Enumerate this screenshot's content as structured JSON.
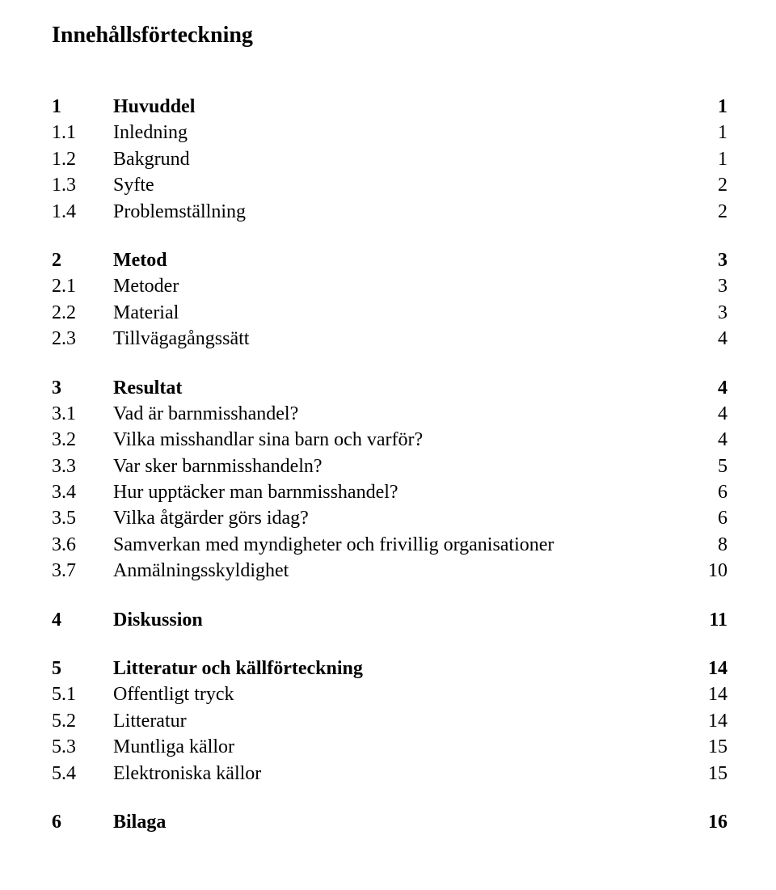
{
  "title": "Innehållsförteckning",
  "rows": [
    {
      "num": "1",
      "label": "Huvuddel",
      "page": "1",
      "bold": true
    },
    {
      "num": "1.1",
      "label": "Inledning",
      "page": "1",
      "bold": false
    },
    {
      "num": "1.2",
      "label": "Bakgrund",
      "page": "1",
      "bold": false
    },
    {
      "num": "1.3",
      "label": "Syfte",
      "page": "2",
      "bold": false
    },
    {
      "num": "1.4",
      "label": "Problemställning",
      "page": "2",
      "bold": false
    },
    {
      "num": "2",
      "label": "Metod",
      "page": "3",
      "bold": true
    },
    {
      "num": "2.1",
      "label": "Metoder",
      "page": "3",
      "bold": false
    },
    {
      "num": "2.2",
      "label": "Material",
      "page": "3",
      "bold": false
    },
    {
      "num": "2.3",
      "label": "Tillvägagångssätt",
      "page": "4",
      "bold": false
    },
    {
      "num": "3",
      "label": "Resultat",
      "page": "4",
      "bold": true
    },
    {
      "num": "3.1",
      "label": "Vad är barnmisshandel?",
      "page": "4",
      "bold": false
    },
    {
      "num": "3.2",
      "label": "Vilka misshandlar sina barn och varför?",
      "page": "4",
      "bold": false
    },
    {
      "num": "3.3",
      "label": "Var sker barnmisshandeln?",
      "page": "5",
      "bold": false
    },
    {
      "num": "3.4",
      "label": "Hur upptäcker man barnmisshandel?",
      "page": "6",
      "bold": false
    },
    {
      "num": "3.5",
      "label": "Vilka åtgärder görs idag?",
      "page": "6",
      "bold": false
    },
    {
      "num": "3.6",
      "label": "Samverkan med myndigheter och frivillig organisationer",
      "page": "8",
      "bold": false
    },
    {
      "num": "3.7",
      "label": "Anmälningsskyldighet",
      "page": "10",
      "bold": false
    },
    {
      "num": "4",
      "label": "Diskussion",
      "page": "11",
      "bold": true
    },
    {
      "num": "5",
      "label": "Litteratur och källförteckning",
      "page": "14",
      "bold": true
    },
    {
      "num": "5.1",
      "label": "Offentligt tryck",
      "page": "14",
      "bold": false
    },
    {
      "num": "5.2",
      "label": "Litteratur",
      "page": "14",
      "bold": false
    },
    {
      "num": "5.3",
      "label": "Muntliga källor",
      "page": "15",
      "bold": false
    },
    {
      "num": "5.4",
      "label": "Elektroniska källor",
      "page": "15",
      "bold": false
    },
    {
      "num": "6",
      "label": "Bilaga",
      "page": "16",
      "bold": true
    }
  ],
  "groups": [
    [
      0,
      1,
      2,
      3,
      4
    ],
    [
      5,
      6,
      7,
      8
    ],
    [
      9,
      10,
      11,
      12,
      13,
      14,
      15,
      16
    ],
    [
      17
    ],
    [
      18,
      19,
      20,
      21,
      22
    ],
    [
      23
    ]
  ]
}
